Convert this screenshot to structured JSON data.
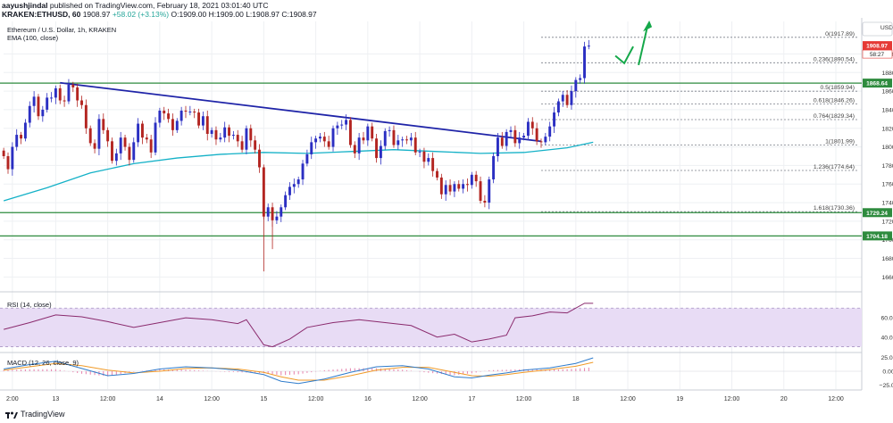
{
  "header": {
    "publisher": "aayushjindal",
    "published_text": "published on TradingView.com, February 18, 2021 03:01:40 UTC",
    "symbol": "KRAKEN:ETHUSD, 60",
    "last": "1908.97",
    "change": "+58.02 (+3.13%)",
    "open": "O:1909.00",
    "high": "H:1909.00",
    "low": "L:1908.97",
    "close": "C:1908.97"
  },
  "legend": {
    "title": "Ethereum / U.S. Dollar, 1h, KRAKEN",
    "ema": "EMA (100, close)",
    "rsi": "RSI (14, close)",
    "macd": "MACD (12, 26, close, 9)"
  },
  "footer": {
    "brand": "TradingView"
  },
  "colors": {
    "bull": "#2b2fc2",
    "bear": "#b32521",
    "ema": "#14b1c7",
    "trendline": "#1f24a8",
    "support": "#2e8b3e",
    "arrow": "#15a84a",
    "rsi": "#8a2a6d",
    "rsi_band": "#e8dcf5",
    "macd_line": "#2f7ccc",
    "signal_line": "#f09a27",
    "hist": "#e88ab2",
    "price_tag": "#e53935"
  },
  "chart_data": [
    {
      "type": "candlestick",
      "title": "Ethereum / U.S. Dollar, 1h, KRAKEN",
      "ylabel": "USD",
      "ylim": [
        1645,
        1935
      ],
      "y_ticks": [
        1660,
        1680,
        1700,
        1720,
        1740,
        1760,
        1780,
        1800,
        1820,
        1840,
        1860,
        1880,
        1900
      ],
      "x_tick_labels": [
        "2:00",
        "13",
        "12:00",
        "14",
        "12:00",
        "15",
        "12:00",
        "16",
        "12:00",
        "17",
        "12:00",
        "18",
        "12:00",
        "19",
        "12:00",
        "20",
        "12:00"
      ],
      "x_tick_hours": [
        2,
        12,
        24,
        36,
        48,
        60,
        72,
        84,
        96,
        108,
        120,
        132,
        144,
        156,
        168,
        180,
        192
      ],
      "x_hours_range": [
        1,
        199
      ],
      "closes": [
        1790,
        1776,
        1800,
        1813,
        1809,
        1826,
        1844,
        1854,
        1833,
        1840,
        1853,
        1853,
        1863,
        1850,
        1849,
        1867,
        1864,
        1850,
        1845,
        1820,
        1804,
        1798,
        1830,
        1818,
        1806,
        1785,
        1793,
        1810,
        1800,
        1786,
        1805,
        1825,
        1810,
        1808,
        1794,
        1826,
        1839,
        1836,
        1830,
        1818,
        1828,
        1839,
        1838,
        1838,
        1837,
        1823,
        1833,
        1814,
        1818,
        1808,
        1810,
        1821,
        1812,
        1813,
        1806,
        1797,
        1820,
        1807,
        1797,
        1778,
        1725,
        1735,
        1721,
        1725,
        1735,
        1748,
        1757,
        1760,
        1765,
        1782,
        1792,
        1805,
        1809,
        1811,
        1806,
        1800,
        1820,
        1823,
        1824,
        1829,
        1802,
        1793,
        1810,
        1807,
        1822,
        1809,
        1788,
        1801,
        1817,
        1818,
        1802,
        1807,
        1808,
        1807,
        1810,
        1794,
        1795,
        1784,
        1788,
        1774,
        1767,
        1749,
        1759,
        1752,
        1760,
        1755,
        1760,
        1759,
        1770,
        1763,
        1742,
        1740,
        1765,
        1790,
        1810,
        1801,
        1816,
        1818,
        1804,
        1810,
        1812,
        1827,
        1820,
        1806,
        1805,
        1811,
        1822,
        1837,
        1849,
        1856,
        1845,
        1860,
        1872,
        1874,
        1908,
        1908.97
      ],
      "series": [
        {
          "name": "EMA (100, close)",
          "hours": [
            0,
            10,
            20,
            30,
            40,
            50,
            60,
            70,
            80,
            90,
            100,
            110,
            120,
            130,
            136
          ],
          "values": [
            1742,
            1756,
            1772,
            1782,
            1788,
            1792,
            1794,
            1793,
            1795,
            1797,
            1795,
            1793,
            1794,
            1799,
            1805
          ]
        }
      ],
      "fibonacci": [
        {
          "label": "0(1917.89)",
          "value": 1917.89
        },
        {
          "label": "0.236(1890.54)",
          "value": 1890.54
        },
        {
          "label": "0.5(1859.94)",
          "value": 1859.94
        },
        {
          "label": "0.618(1846.26)",
          "value": 1846.26
        },
        {
          "label": "0.764(1829.34)",
          "value": 1829.34
        },
        {
          "label": "1(1801.99)",
          "value": 1801.99
        },
        {
          "label": "1.236(1774.64)",
          "value": 1774.64
        },
        {
          "label": "1.618(1730.36)",
          "value": 1730.36
        }
      ],
      "horizontal_lines": [
        {
          "label": "1868.64",
          "value": 1868.64
        },
        {
          "label": "1729.24",
          "value": 1729.24
        },
        {
          "label": "1704.18",
          "value": 1704.18
        }
      ],
      "trendline": {
        "from": {
          "hour": 13,
          "value": 1869
        },
        "to": {
          "hour": 124,
          "value": 1806
        }
      },
      "last_price": {
        "label": "1908.97",
        "value": 1908.97,
        "countdown": "58:27"
      }
    },
    {
      "type": "line",
      "title": "RSI (14, close)",
      "ylim": [
        25,
        85
      ],
      "y_ticks": [
        40,
        60
      ],
      "band": [
        30,
        70
      ],
      "series": [
        {
          "name": "RSI (14, close)",
          "hours": [
            0,
            6,
            12,
            18,
            24,
            30,
            36,
            42,
            48,
            54,
            56,
            60,
            62,
            66,
            70,
            76,
            82,
            88,
            94,
            100,
            104,
            108,
            112,
            116,
            118,
            122,
            126,
            130,
            134,
            136
          ],
          "values": [
            48,
            55,
            63,
            61,
            56,
            50,
            55,
            60,
            58,
            54,
            58,
            32,
            30,
            38,
            50,
            55,
            58,
            55,
            52,
            40,
            43,
            35,
            38,
            42,
            60,
            62,
            66,
            65,
            75,
            75
          ]
        }
      ]
    },
    {
      "type": "line",
      "title": "MACD (12, 26, close, 9)",
      "ylim": [
        -32,
        32
      ],
      "y_ticks": [
        25,
        0,
        -25
      ],
      "series": [
        {
          "name": "MACD",
          "hours": [
            0,
            6,
            12,
            18,
            24,
            30,
            36,
            42,
            48,
            54,
            60,
            64,
            68,
            74,
            80,
            86,
            92,
            98,
            104,
            108,
            112,
            116,
            120,
            126,
            132,
            136
          ],
          "values": [
            4,
            12,
            18,
            5,
            -8,
            -4,
            4,
            8,
            6,
            2,
            -6,
            -18,
            -22,
            -14,
            -2,
            8,
            10,
            4,
            -10,
            -12,
            -7,
            -3,
            2,
            6,
            14,
            24
          ]
        },
        {
          "name": "Signal",
          "hours": [
            0,
            6,
            12,
            18,
            24,
            30,
            36,
            42,
            48,
            54,
            60,
            64,
            68,
            74,
            80,
            86,
            92,
            98,
            104,
            108,
            112,
            116,
            120,
            126,
            132,
            136
          ],
          "values": [
            2,
            8,
            14,
            10,
            2,
            -3,
            0,
            5,
            6,
            4,
            -2,
            -10,
            -16,
            -16,
            -8,
            2,
            7,
            7,
            -2,
            -8,
            -9,
            -6,
            -2,
            3,
            9,
            16
          ]
        }
      ]
    }
  ]
}
